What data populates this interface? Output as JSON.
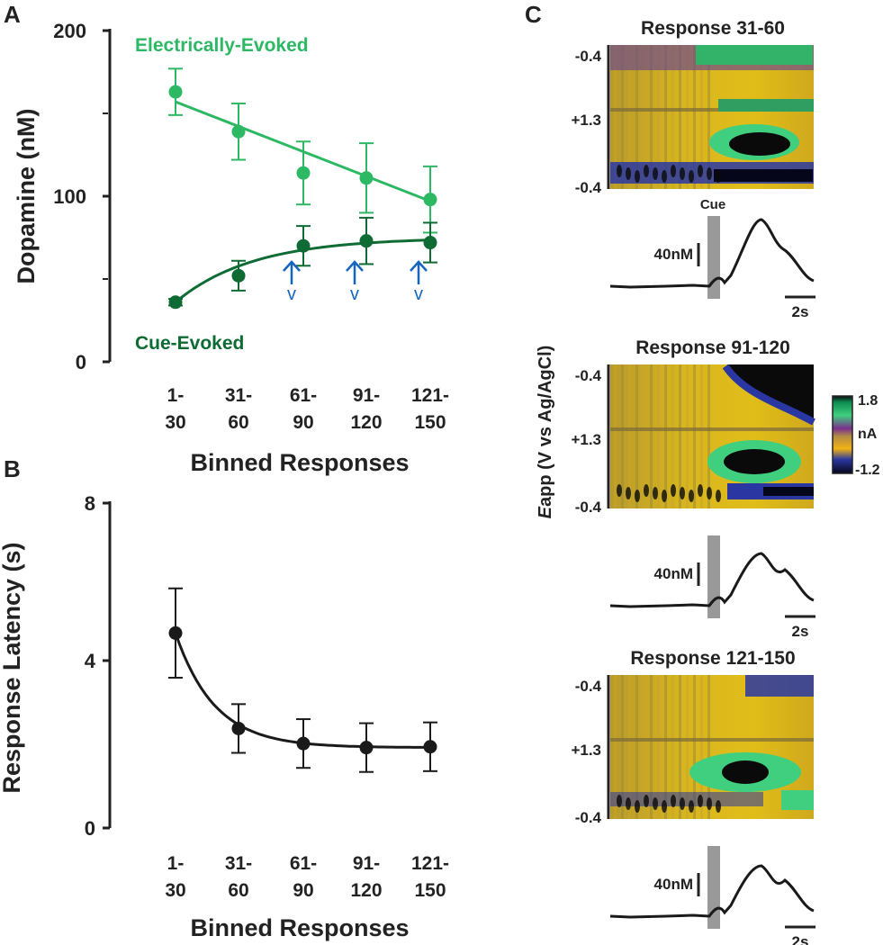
{
  "panels": {
    "a": "A",
    "b": "B",
    "c": "C"
  },
  "colors": {
    "electric": "#2db864",
    "cue": "#0d6b33",
    "latency": "#1a1a1a",
    "arrow": "#1565c0",
    "trace": "#1a1a1a",
    "cue_bar": "#999999"
  },
  "chart_data": [
    {
      "type": "line",
      "panel": "A",
      "ylabel": "Dopamine (nM)",
      "xlabel": "Binned Responses",
      "categories": [
        [
          "1-",
          "30"
        ],
        [
          "31-",
          "60"
        ],
        [
          "61-",
          "90"
        ],
        [
          "91-",
          "120"
        ],
        [
          "121-",
          "150"
        ]
      ],
      "ylim": [
        0,
        200
      ],
      "yticks": [
        "0",
        "100",
        "200"
      ],
      "series": [
        {
          "name": "Electrically-Evoked",
          "values": [
            163,
            139,
            114,
            111,
            98
          ],
          "errors": [
            14,
            17,
            19,
            21,
            20
          ],
          "fit": "linear",
          "fit_values": [
            157,
            97
          ]
        },
        {
          "name": "Cue-Evoked",
          "values": [
            36,
            52,
            70,
            73,
            72
          ],
          "errors": [
            2,
            9,
            12,
            14,
            12
          ],
          "fit": "saturating",
          "fit_values": [
            36,
            75
          ]
        }
      ],
      "annotations": {
        "arrow_bins": [
          2,
          3,
          4
        ],
        "arrow_up": "↑",
        "arrow_down": "v"
      }
    },
    {
      "type": "line",
      "panel": "B",
      "ylabel": "Response Latency (s)",
      "xlabel": "Binned Responses",
      "categories": [
        [
          "1-",
          "30"
        ],
        [
          "31-",
          "60"
        ],
        [
          "61-",
          "90"
        ],
        [
          "91-",
          "120"
        ],
        [
          "121-",
          "150"
        ]
      ],
      "ylim": [
        0,
        8
      ],
      "yticks": [
        "0",
        "4",
        "8"
      ],
      "series": [
        {
          "name": "Response Latency",
          "values": [
            4.8,
            2.45,
            2.08,
            1.98,
            2.0
          ],
          "errors": [
            1.1,
            0.6,
            0.6,
            0.6,
            0.6
          ],
          "fit": "exponential",
          "fit_values": [
            4.8,
            1.98
          ]
        }
      ]
    },
    {
      "type": "heatmap",
      "panel": "C",
      "ylabel_prefix": "E",
      "ylabel": "app (V vs Ag/AgCl)",
      "colorbar": {
        "max": "1.8",
        "unit": "nA",
        "min": "-1.2"
      },
      "cue_label": "Cue",
      "scale_label": "40nM",
      "time_label": "2s",
      "plots": [
        {
          "title": "Response 31-60",
          "yticks": [
            "-0.4",
            "+1.3",
            "-0.4"
          ]
        },
        {
          "title": "Response 91-120",
          "yticks": [
            "-0.4",
            "+1.3",
            "-0.4"
          ]
        },
        {
          "title": "Response 121-150",
          "yticks": [
            "-0.4",
            "+1.3",
            "-0.4"
          ]
        }
      ]
    }
  ]
}
